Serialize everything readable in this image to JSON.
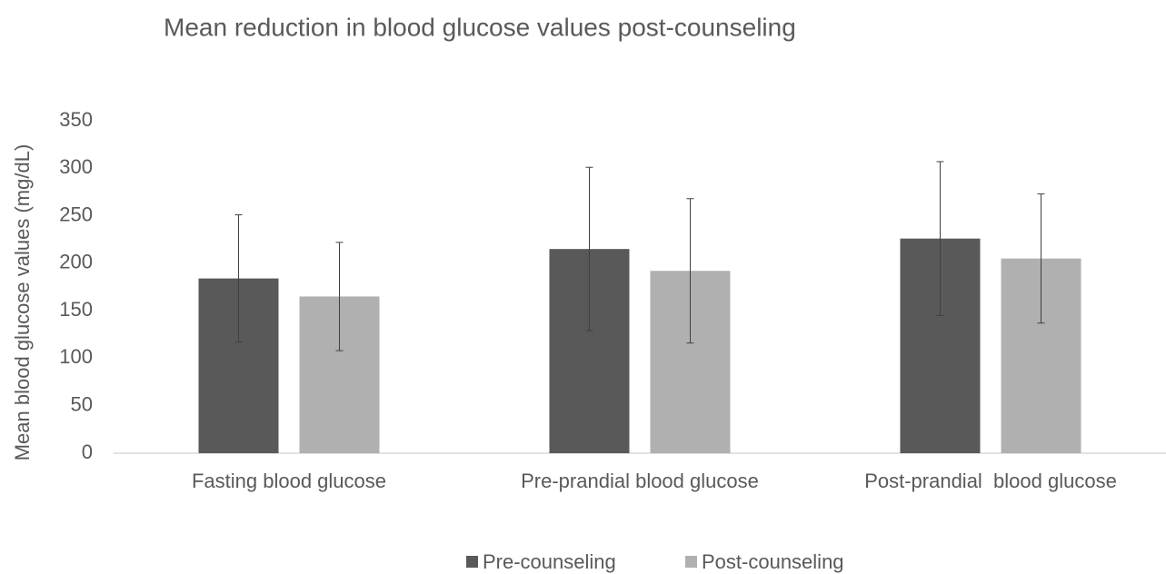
{
  "chart_data": {
    "type": "bar",
    "title": "Mean reduction in blood glucose values post-counseling",
    "y_label": "Mean blood glucose values (mg/dL)",
    "categories": [
      "Fasting blood glucose",
      "Pre-prandial blood glucose",
      "Post-prandial  blood glucose"
    ],
    "series": [
      {
        "name": "Pre-counseling",
        "color": "#595959",
        "values": [
          184,
          215,
          226
        ],
        "errors": [
          67,
          86,
          81
        ]
      },
      {
        "name": "Post-counseling",
        "color": "#b0b0b0",
        "values": [
          165,
          192,
          205
        ],
        "errors": [
          57,
          76,
          68
        ]
      }
    ],
    "ylim": [
      0,
      350
    ],
    "yticks": [
      0,
      50,
      100,
      150,
      200,
      250,
      300,
      350
    ],
    "grid": false,
    "legend": "bottom"
  }
}
